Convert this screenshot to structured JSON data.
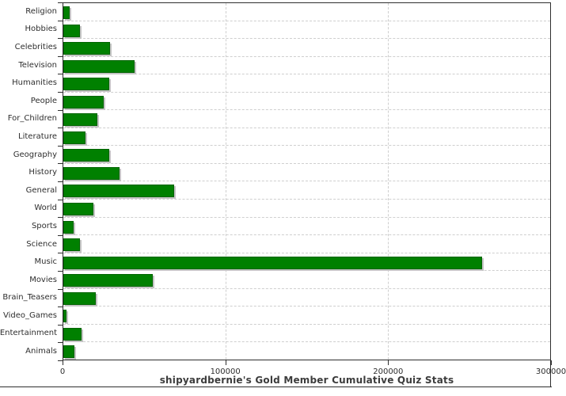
{
  "colors": {
    "bar-fill": "#008000",
    "bar-border": "#006400",
    "bar-shadow": "#c4c4c4",
    "grid-line": "#cfcfcf",
    "axis-line": "#2e2e2e",
    "label-text": "#2e2e2e",
    "title-text": "#3c3c3c"
  },
  "chart_data": {
    "type": "bar",
    "orientation": "horizontal",
    "title": "shipyardbernie's Gold Member Cumulative Quiz Stats",
    "categories": [
      "Religion",
      "Hobbies",
      "Celebrities",
      "Television",
      "Humanities",
      "People",
      "For_Children",
      "Literature",
      "Geography",
      "History",
      "General",
      "World",
      "Sports",
      "Science",
      "Music",
      "Movies",
      "Brain_Teasers",
      "Video_Games",
      "Entertainment",
      "Animals"
    ],
    "values": [
      3000,
      9500,
      28000,
      43000,
      27500,
      24000,
      20000,
      12500,
      27500,
      33500,
      67500,
      17500,
      5500,
      9500,
      257000,
      54000,
      19000,
      1200,
      10000,
      6000
    ],
    "x_axis": {
      "min": 0,
      "max": 300000,
      "ticks": [
        0,
        100000,
        200000,
        300000
      ],
      "tick_labels": [
        "0",
        "100000",
        "200000",
        "300000"
      ]
    },
    "ylabel": "",
    "xlabel": "",
    "grid": "dashed",
    "legend": "none",
    "bar_color": "#008000"
  }
}
